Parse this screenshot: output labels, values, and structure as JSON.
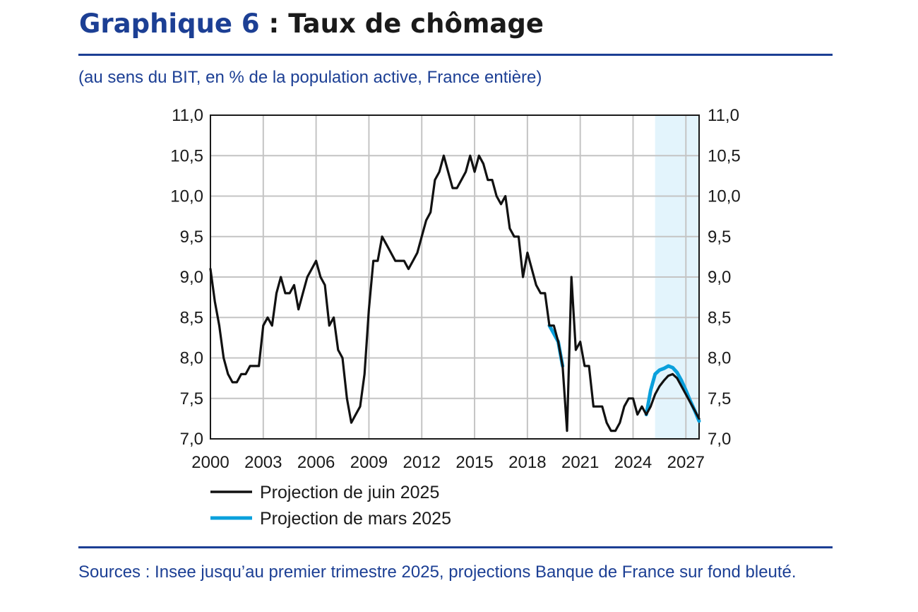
{
  "header": {
    "title_prefix": "Graphique 6",
    "title_rest": " : Taux de chômage",
    "subtitle": "(au sens du BIT, en % de la population active, France entière)"
  },
  "footer": {
    "sources": "Sources : Insee jusqu’au premier trimestre 2025, projections Banque de France sur fond bleuté."
  },
  "colors": {
    "accent": "#1c3f94",
    "juin": "#111111",
    "mars": "#0aa0dc",
    "projection_band": "#e3f4fc",
    "grid": "#c4c4c4"
  },
  "chart_data": {
    "type": "line",
    "title": "Taux de chômage",
    "xlabel": "",
    "ylabel": "",
    "xlim": [
      2000.0,
      2027.75
    ],
    "ylim": [
      7.0,
      11.0
    ],
    "x_ticks": [
      2000,
      2003,
      2006,
      2009,
      2012,
      2015,
      2018,
      2021,
      2024,
      2027
    ],
    "y_ticks": [
      "7,0",
      "7,5",
      "8,0",
      "8,5",
      "9,0",
      "9,5",
      "10,0",
      "10,5",
      "11,0"
    ],
    "y_tick_values": [
      7.0,
      7.5,
      8.0,
      8.5,
      9.0,
      9.5,
      10.0,
      10.5,
      11.0
    ],
    "grid": true,
    "projection_band": [
      2025.25,
      2027.75
    ],
    "legend_position": "bottom-left",
    "series": [
      {
        "name": "Projection de juin 2025",
        "color": "#111111",
        "x": [
          2000.0,
          2000.25,
          2000.5,
          2000.75,
          2001.0,
          2001.25,
          2001.5,
          2001.75,
          2002.0,
          2002.25,
          2002.5,
          2002.75,
          2003.0,
          2003.25,
          2003.5,
          2003.75,
          2004.0,
          2004.25,
          2004.5,
          2004.75,
          2005.0,
          2005.25,
          2005.5,
          2005.75,
          2006.0,
          2006.25,
          2006.5,
          2006.75,
          2007.0,
          2007.25,
          2007.5,
          2007.75,
          2008.0,
          2008.25,
          2008.5,
          2008.75,
          2009.0,
          2009.25,
          2009.5,
          2009.75,
          2010.0,
          2010.25,
          2010.5,
          2010.75,
          2011.0,
          2011.25,
          2011.5,
          2011.75,
          2012.0,
          2012.25,
          2012.5,
          2012.75,
          2013.0,
          2013.25,
          2013.5,
          2013.75,
          2014.0,
          2014.25,
          2014.5,
          2014.75,
          2015.0,
          2015.25,
          2015.5,
          2015.75,
          2016.0,
          2016.25,
          2016.5,
          2016.75,
          2017.0,
          2017.25,
          2017.5,
          2017.75,
          2018.0,
          2018.25,
          2018.5,
          2018.75,
          2019.0,
          2019.25,
          2019.5,
          2019.75,
          2020.0,
          2020.25,
          2020.5,
          2020.75,
          2021.0,
          2021.25,
          2021.5,
          2021.75,
          2022.0,
          2022.25,
          2022.5,
          2022.75,
          2023.0,
          2023.25,
          2023.5,
          2023.75,
          2024.0,
          2024.25,
          2024.5,
          2024.75,
          2025.0,
          2025.25,
          2025.5,
          2025.75,
          2026.0,
          2026.25,
          2026.5,
          2026.75,
          2027.0,
          2027.25,
          2027.5,
          2027.75
        ],
        "values": [
          9.1,
          8.7,
          8.4,
          8.0,
          7.8,
          7.7,
          7.7,
          7.8,
          7.8,
          7.9,
          7.9,
          7.9,
          8.4,
          8.5,
          8.4,
          8.8,
          9.0,
          8.8,
          8.8,
          8.9,
          8.6,
          8.8,
          9.0,
          9.1,
          9.2,
          9.0,
          8.9,
          8.4,
          8.5,
          8.1,
          8.0,
          7.5,
          7.2,
          7.3,
          7.4,
          7.8,
          8.6,
          9.2,
          9.2,
          9.5,
          9.4,
          9.3,
          9.2,
          9.2,
          9.2,
          9.1,
          9.2,
          9.3,
          9.5,
          9.7,
          9.8,
          10.2,
          10.3,
          10.5,
          10.3,
          10.1,
          10.1,
          10.2,
          10.3,
          10.5,
          10.3,
          10.5,
          10.4,
          10.2,
          10.2,
          10.0,
          9.9,
          10.0,
          9.6,
          9.5,
          9.5,
          9.0,
          9.3,
          9.1,
          8.9,
          8.8,
          8.8,
          8.4,
          8.4,
          8.2,
          7.9,
          7.1,
          9.0,
          8.1,
          8.2,
          7.9,
          7.9,
          7.4,
          7.4,
          7.4,
          7.2,
          7.1,
          7.1,
          7.2,
          7.4,
          7.5,
          7.5,
          7.3,
          7.4,
          7.3,
          7.4,
          7.55,
          7.65,
          7.72,
          7.78,
          7.8,
          7.75,
          7.65,
          7.55,
          7.45,
          7.35,
          7.25
        ]
      },
      {
        "name": "Projection de mars 2025",
        "color": "#0aa0dc",
        "x": [
          2019.25,
          2019.5,
          2019.75,
          2020.0,
          2024.75,
          2025.0,
          2025.25,
          2025.5,
          2025.75,
          2026.0,
          2026.25,
          2026.5,
          2026.75,
          2027.0,
          2027.25,
          2027.5,
          2027.75
        ],
        "values": [
          8.4,
          8.3,
          8.2,
          7.9,
          7.3,
          7.6,
          7.8,
          7.85,
          7.87,
          7.9,
          7.88,
          7.82,
          7.72,
          7.6,
          7.47,
          7.35,
          7.22
        ]
      }
    ]
  }
}
